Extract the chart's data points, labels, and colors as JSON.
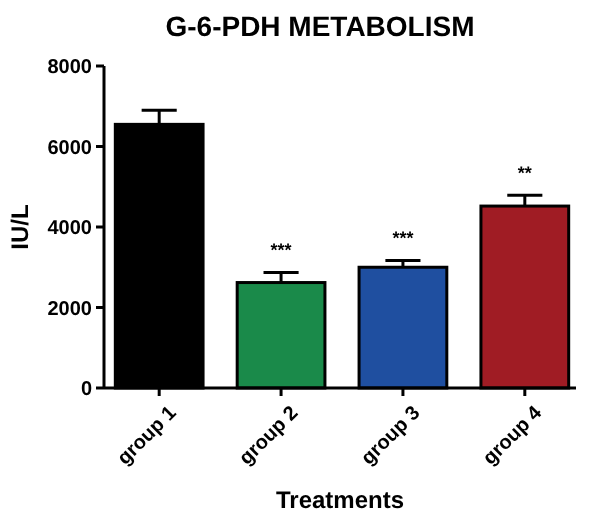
{
  "chart_data": {
    "type": "bar",
    "title": "G-6-PDH METABOLISM",
    "xlabel": "Treatments",
    "ylabel": "IU/L",
    "categories": [
      "group 1",
      "group 2",
      "group 3",
      "group 4"
    ],
    "values": [
      6550,
      2620,
      3000,
      4520
    ],
    "errors": [
      350,
      250,
      170,
      270
    ],
    "colors": [
      "#000000",
      "#1a8a4a",
      "#1f4fa0",
      "#a01c24"
    ],
    "ylim": [
      0,
      8000
    ],
    "yticks": [
      0,
      2000,
      4000,
      6000,
      8000
    ],
    "annotations": [
      {
        "text": "***",
        "x": "group 2",
        "y": 2870
      },
      {
        "text": "***",
        "x": "group 3",
        "y": 3170
      },
      {
        "text": "**",
        "x": "group 4",
        "y": 4790
      }
    ]
  }
}
